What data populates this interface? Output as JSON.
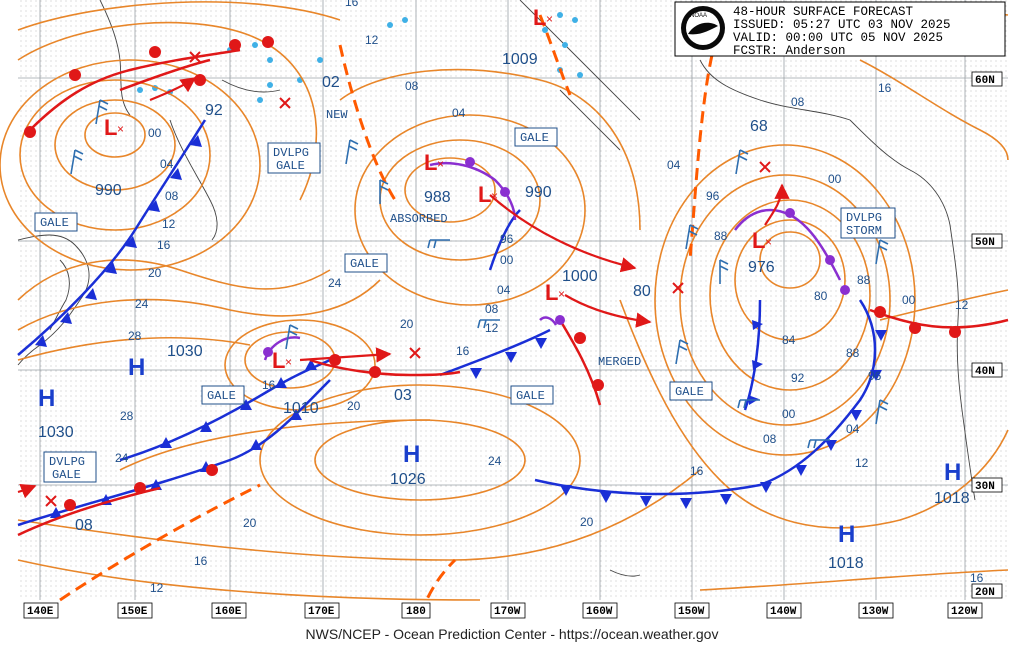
{
  "header": {
    "title": "48-HOUR SURFACE FORECAST",
    "issued": "ISSUED: 05:27 UTC 03 NOV 2025",
    "valid": "VALID:  00:00 UTC 05 NOV 2025",
    "fcstr": "FCSTR:  Anderson",
    "logo_text": "NOAA"
  },
  "footer": "NWS/NCEP - Ocean Prediction Center - https://ocean.weather.gov",
  "lon_ticks": [
    "140E",
    "150E",
    "160E",
    "170E",
    "180",
    "170W",
    "160W",
    "150W",
    "140W",
    "130W",
    "120W"
  ],
  "lat_ticks": [
    "60N",
    "50N",
    "40N",
    "30N",
    "20N"
  ],
  "systems": [
    {
      "type": "L",
      "pressure": "990"
    },
    {
      "type": "L",
      "pressure": "988"
    },
    {
      "type": "L",
      "pressure": "990"
    },
    {
      "type": "L",
      "pressure": "1000"
    },
    {
      "type": "L",
      "pressure": "1010"
    },
    {
      "type": "L",
      "pressure": "976"
    },
    {
      "type": "L",
      "pressure": "1009"
    },
    {
      "type": "H",
      "pressure": "1030"
    },
    {
      "type": "H",
      "pressure": "1030"
    },
    {
      "type": "H",
      "pressure": "1026"
    },
    {
      "type": "H",
      "pressure": "1018"
    },
    {
      "type": "H",
      "pressure": "1018"
    }
  ],
  "labels": {
    "gale": "GALE",
    "dvlpg_gale_1": "DVLPG",
    "dvlpg_gale_2": "GALE",
    "dvlpg_storm_1": "DVLPG",
    "dvlpg_storm_2": "STORM",
    "absorbed": "ABSORBED",
    "merged": "MERGED",
    "new": "NEW"
  },
  "pressure_labels": {
    "p92": "92",
    "p68": "68",
    "p80": "80",
    "p02": "02",
    "p03": "03",
    "p08": "08"
  },
  "isobar_labels": [
    "16",
    "12",
    "08",
    "04",
    "00",
    "96",
    "92",
    "88",
    "84",
    "80",
    "20",
    "24",
    "28",
    "16",
    "12",
    "08",
    "04",
    "00",
    "96",
    "92",
    "88",
    "24",
    "20",
    "16",
    "12",
    "08",
    "04",
    "00",
    "16",
    "12",
    "16",
    "20",
    "24",
    "28",
    "20",
    "24",
    "20",
    "16",
    "12",
    "16",
    "12",
    "16",
    "08",
    "04",
    "00"
  ],
  "colors": {
    "isobar": "#e8862a",
    "cold_front": "#1a2fd6",
    "warm_front": "#e01818",
    "occluded": "#8a2fd0",
    "trough": "#ff5a00",
    "label_text": "#1f4f8a",
    "grid": "#9aa0a6"
  }
}
